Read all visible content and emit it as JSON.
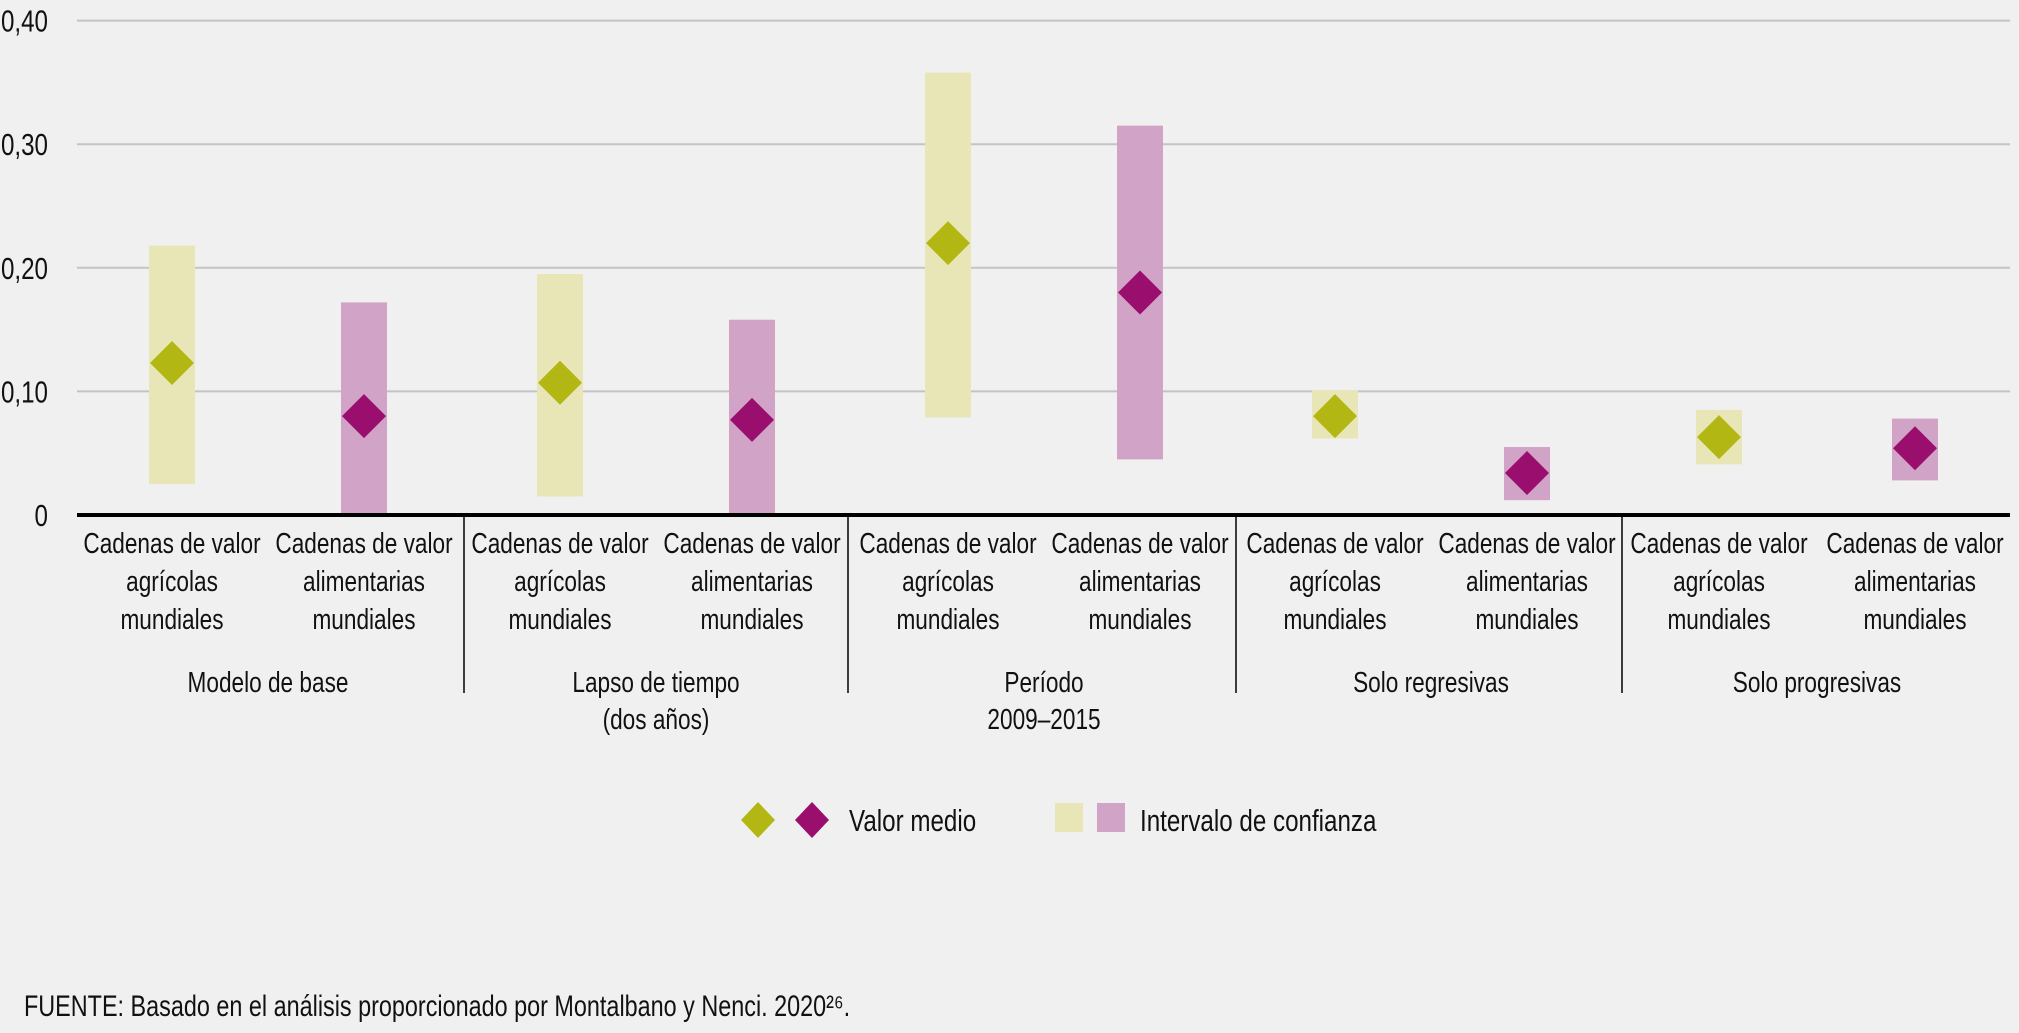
{
  "chart_data": {
    "type": "scatter",
    "subtype": "point-estimate-with-confidence-interval",
    "title": "",
    "xlabel": "",
    "ylabel": "",
    "ylim": [
      0,
      0.4
    ],
    "yticks": [
      0,
      0.1,
      0.2,
      0.3,
      0.4
    ],
    "ytick_labels": [
      "0",
      "0,10",
      "0,20",
      "0,30",
      "0,40"
    ],
    "grid": true,
    "legend_position": "bottom-center",
    "series": [
      {
        "name": "Cadenas de valor agrícolas mundiales",
        "label_lines": [
          "Cadenas de valor",
          "agrícolas",
          "mundiales"
        ],
        "marker_color": "#b3b714",
        "band_color": "#e8e6b6"
      },
      {
        "name": "Cadenas de valor alimentarias mundiales",
        "label_lines": [
          "Cadenas de valor",
          "alimentarias",
          "mundiales"
        ],
        "marker_color": "#9a0e6e",
        "band_color": "#d1a3c6"
      }
    ],
    "groups": [
      {
        "label_lines": [
          "Modelo de base"
        ],
        "points": [
          {
            "series": 0,
            "mean": 0.123,
            "ci_low": 0.025,
            "ci_high": 0.218
          },
          {
            "series": 1,
            "mean": 0.08,
            "ci_low": 0.0,
            "ci_high": 0.172
          }
        ]
      },
      {
        "label_lines": [
          "Lapso de tiempo",
          "(dos años)"
        ],
        "points": [
          {
            "series": 0,
            "mean": 0.107,
            "ci_low": 0.015,
            "ci_high": 0.195
          },
          {
            "series": 1,
            "mean": 0.077,
            "ci_low": 0.0,
            "ci_high": 0.158
          }
        ]
      },
      {
        "label_lines": [
          "Período",
          "2009–2015"
        ],
        "points": [
          {
            "series": 0,
            "mean": 0.22,
            "ci_low": 0.079,
            "ci_high": 0.358
          },
          {
            "series": 1,
            "mean": 0.18,
            "ci_low": 0.045,
            "ci_high": 0.315
          }
        ]
      },
      {
        "label_lines": [
          "Solo regresivas"
        ],
        "points": [
          {
            "series": 0,
            "mean": 0.08,
            "ci_low": 0.062,
            "ci_high": 0.101
          },
          {
            "series": 1,
            "mean": 0.034,
            "ci_low": 0.012,
            "ci_high": 0.055
          }
        ]
      },
      {
        "label_lines": [
          "Solo progresivas"
        ],
        "points": [
          {
            "series": 0,
            "mean": 0.063,
            "ci_low": 0.041,
            "ci_high": 0.085
          },
          {
            "series": 1,
            "mean": 0.054,
            "ci_low": 0.028,
            "ci_high": 0.078
          }
        ]
      }
    ],
    "legend": {
      "mean_label": "Valor medio",
      "ci_label": "Intervalo de confianza"
    }
  },
  "source": "FUENTE: Basado en el análisis proporcionado por Montalbano y Nenci. 2020²⁶.",
  "colors": {
    "background": "#f0f0f0",
    "gridline": "#c4c4c4",
    "axis": "#000000",
    "text": "#111111"
  }
}
